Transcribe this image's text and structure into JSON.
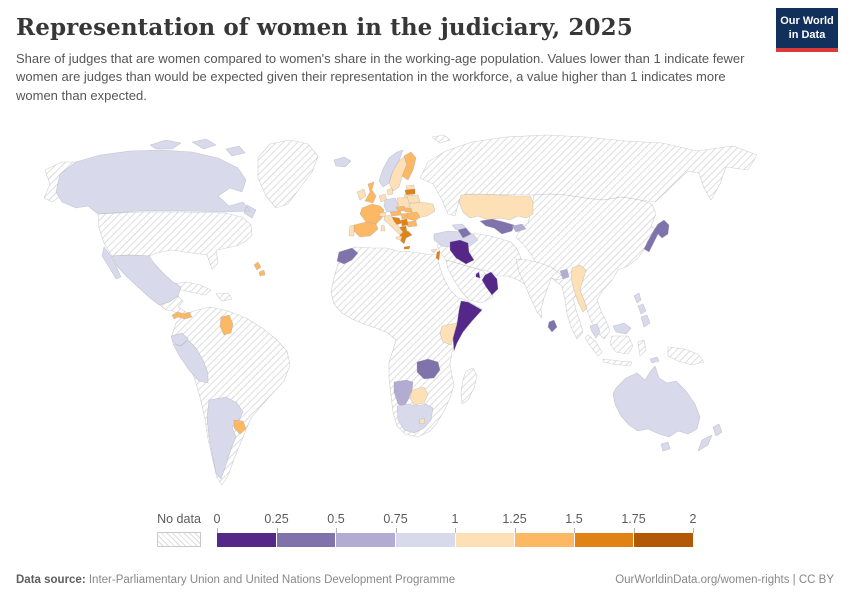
{
  "header": {
    "title": "Representation of women in the judiciary, 2025",
    "subtitle": "Share of judges that are women compared to women's share in the working-age population. Values lower than 1 indicate fewer women are judges than would be expected given their representation in the workforce, a value higher than 1 indicates more women than expected.",
    "logo": {
      "line1": "Our World",
      "line2": "in Data"
    }
  },
  "legend": {
    "no_data_label": "No data",
    "tick_labels": [
      "0",
      "0.25",
      "0.5",
      "0.75",
      "1",
      "1.25",
      "1.5",
      "1.75",
      "2"
    ]
  },
  "footer": {
    "source_label": "Data source:",
    "source_text": " Inter-Parliamentary Union and United Nations Development Programme",
    "right_text": "OurWorldinData.org/women-rights | CC BY"
  },
  "chart_data": {
    "type": "choropleth_map",
    "title": "Representation of women in the judiciary, 2025",
    "year": "2025",
    "value_definition": "ratio of women's share of judges to women's share of working-age population",
    "color_scale": {
      "ranges": [
        "0–0.25",
        "0.25–0.5",
        "0.5–0.75",
        "0.75–1",
        "1–1.25",
        "1.25–1.5",
        "1.5–1.75",
        "1.75–2"
      ],
      "colors": [
        "#542788",
        "#8073ac",
        "#b2abd2",
        "#d8daeb",
        "#fee0b6",
        "#fdb863",
        "#e08214",
        "#b35806"
      ],
      "no_data_style": "white with diagonal gray hatching"
    },
    "country_bins": {
      "canada": "0.75–1",
      "mexico": "0.75–1",
      "panama": "1.25–1.5",
      "bahamas": "1.25–1.5",
      "guyana": "1.25–1.5",
      "ecuador": "0.75–1",
      "peru": "0.75–1",
      "argentina": "0.75–1",
      "uruguay": "1.25–1.5",
      "iceland": "0.75–1",
      "ireland": "1–1.25",
      "united-kingdom": "1.25–1.5",
      "portugal": "1–1.25",
      "spain": "1.25–1.5",
      "france": "1.25–1.5",
      "benelux": "1–1.25",
      "germany": "0.75–1",
      "denmark": "1–1.25",
      "norway": "0.75–1",
      "sweden": "1–1.25",
      "finland": "1.25–1.5",
      "estonia": "1–1.25",
      "latvia": "1.5–1.75",
      "lithuania": "1–1.25",
      "poland": "1–1.25",
      "czechia": "1.25–1.5",
      "slovakia": "1.25–1.5",
      "austria": "1.25–1.5",
      "switzerland": "1–1.25",
      "italy": "1–1.25",
      "hungary": "1.25–1.5",
      "croatia-bosnia": "1.5–1.75",
      "serbia": "1.5–1.75",
      "albania-north-macedonia": "1.5–1.75",
      "greece": "1.5–1.75",
      "romania": "1.25–1.5",
      "bulgaria": "1.25–1.5",
      "belarus": "1–1.25",
      "ukraine": "1–1.25",
      "turkey": "0.75–1",
      "cyprus": "1–1.25",
      "georgia": "0.75–1",
      "azerbaijan": "0.25–0.5",
      "israel": "1.5–1.75",
      "iraq": "0–0.25",
      "qatar": "0–0.25",
      "oman": "0–0.25",
      "kazakhstan": "1–1.25",
      "uzbekistan": "0.25–0.5",
      "kyrgyzstan": "0.5–0.75",
      "japan": "0.25–0.5",
      "sri-lanka": "0.25–0.5",
      "bangladesh": "0.5–0.75",
      "myanmar": "1–1.25",
      "philippines": "0.75–1",
      "malaysia": "0.75–1",
      "timor-leste": "0.75–1",
      "australia": "0.75–1",
      "new-zealand": "0.75–1",
      "morocco": "0.25–0.5",
      "somalia": "0–0.25",
      "kenya": "1–1.25",
      "zambia": "0.25–0.5",
      "namibia": "0.5–0.75",
      "botswana": "1–1.25",
      "south-africa": "0.75–1",
      "lesotho": "1–1.25"
    },
    "no_data_regions": [
      "United States",
      "Alaska",
      "Greenland",
      "Cuba",
      "Haiti/Dominican Republic",
      "Central America",
      "Colombia",
      "Venezuela",
      "Suriname",
      "Brazil",
      "Bolivia",
      "Paraguay",
      "Chile",
      "Russia",
      "China",
      "Mongolia",
      "North Korea",
      "South Korea",
      "India",
      "Iran",
      "Saudi Arabia",
      "Yemen",
      "Syria",
      "Afghanistan",
      "Pakistan",
      "Turkmenistan",
      "Thailand",
      "Vietnam",
      "Laos",
      "Cambodia",
      "Indonesia",
      "Papua New Guinea",
      "Madagascar",
      "Egypt",
      "Libya",
      "Algeria",
      "Tunisia",
      "Sudan",
      "Ethiopia",
      "Nigeria",
      "DR Congo",
      "Angola",
      "Mozambique",
      "Tanzania",
      "Zimbabwe",
      "most of West and Central Africa"
    ]
  }
}
